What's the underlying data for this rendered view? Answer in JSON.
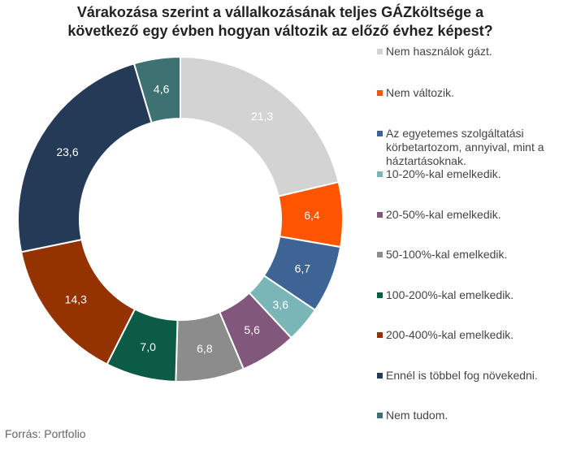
{
  "title": {
    "line1": "Várakozása szerint a vállalkozásának teljes GÁZköltsége a",
    "line2": "következő egy évben hogyan változik az előző évhez képest?"
  },
  "source": "Forrás: Portfolio",
  "chart_data": {
    "type": "pie",
    "donut": true,
    "title": "Várakozása szerint a vállalkozásának teljes GÁZköltsége a következő egy évben hogyan változik az előző évhez képest?",
    "legend_position": "right",
    "slices": [
      {
        "label": "Nem használok gázt.",
        "value": 21.3,
        "value_label": "21,3",
        "color": "#d3d3d3",
        "label_color": "#ffffff"
      },
      {
        "label": "Nem változik.",
        "value": 6.4,
        "value_label": "6,4",
        "color": "#ff5500",
        "label_color": "#ffffff"
      },
      {
        "label": "Az egyetemes szolgáltatási körbetartozom, annyival, mint a háztartásoknak.",
        "value": 6.7,
        "value_label": "6,7",
        "color": "#3d6494",
        "label_color": "#ffffff"
      },
      {
        "label": "10-20%-kal emelkedik.",
        "value": 3.6,
        "value_label": "3,6",
        "color": "#7ab6b8",
        "label_color": "#ffffff"
      },
      {
        "label": "20-50%-kal emelkedik.",
        "value": 5.6,
        "value_label": "5,6",
        "color": "#82577c",
        "label_color": "#ffffff"
      },
      {
        "label": "50-100%-kal emelkedik.",
        "value": 6.8,
        "value_label": "6,8",
        "color": "#8c8c8c",
        "label_color": "#ffffff"
      },
      {
        "label": "100-200%-kal emelkedik.",
        "value": 7.0,
        "value_label": "7,0",
        "color": "#0c5b46",
        "label_color": "#ffffff"
      },
      {
        "label": "200-400%-kal emelkedik.",
        "value": 14.3,
        "value_label": "14,3",
        "color": "#953300",
        "label_color": "#ffffff"
      },
      {
        "label": "Ennél is többel fog növekedni.",
        "value": 23.6,
        "value_label": "23,6",
        "color": "#253a57",
        "label_color": "#ffffff"
      },
      {
        "label": "Nem tudom.",
        "value": 4.6,
        "value_label": "4,6",
        "color": "#3e7272",
        "label_color": "#ffffff"
      }
    ]
  }
}
